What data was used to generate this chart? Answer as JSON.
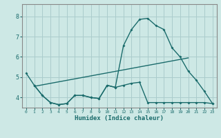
{
  "xlabel": "Humidex (Indice chaleur)",
  "background_color": "#cde8e5",
  "grid_color": "#aacccc",
  "line_color": "#1a6b6b",
  "xlim": [
    -0.5,
    23.5
  ],
  "ylim": [
    3.5,
    8.6
  ],
  "yticks": [
    4,
    5,
    6,
    7,
    8
  ],
  "xticks": [
    0,
    1,
    2,
    3,
    4,
    5,
    6,
    7,
    8,
    9,
    10,
    11,
    12,
    13,
    14,
    15,
    16,
    17,
    18,
    19,
    20,
    21,
    22,
    23
  ],
  "line1_x": [
    0,
    1,
    2,
    3,
    4,
    5,
    6,
    7,
    8,
    9,
    10,
    11,
    12,
    13,
    14,
    15,
    16,
    17,
    18,
    19,
    20,
    21,
    22,
    23
  ],
  "line1_y": [
    5.2,
    4.6,
    4.1,
    3.75,
    3.65,
    3.7,
    4.1,
    4.1,
    4.0,
    3.95,
    4.6,
    4.5,
    6.55,
    7.35,
    7.85,
    7.9,
    7.55,
    7.35,
    6.45,
    6.0,
    5.3,
    4.85,
    4.3,
    3.7
  ],
  "line2_x": [
    1,
    2,
    3,
    4,
    5,
    6,
    7,
    8,
    9,
    10,
    11,
    12,
    13,
    14,
    15,
    16,
    17,
    18,
    19,
    20,
    21,
    22,
    23
  ],
  "line2_y": [
    4.6,
    4.1,
    3.75,
    3.65,
    3.7,
    4.1,
    4.1,
    4.0,
    3.95,
    4.6,
    4.5,
    4.6,
    4.7,
    4.75,
    3.75,
    3.75,
    3.75,
    3.75,
    3.75,
    3.75,
    3.75,
    3.75,
    3.7
  ],
  "line3_x": [
    1,
    20
  ],
  "line3_y": [
    4.55,
    5.95
  ],
  "font_color": "#1a6b6b"
}
